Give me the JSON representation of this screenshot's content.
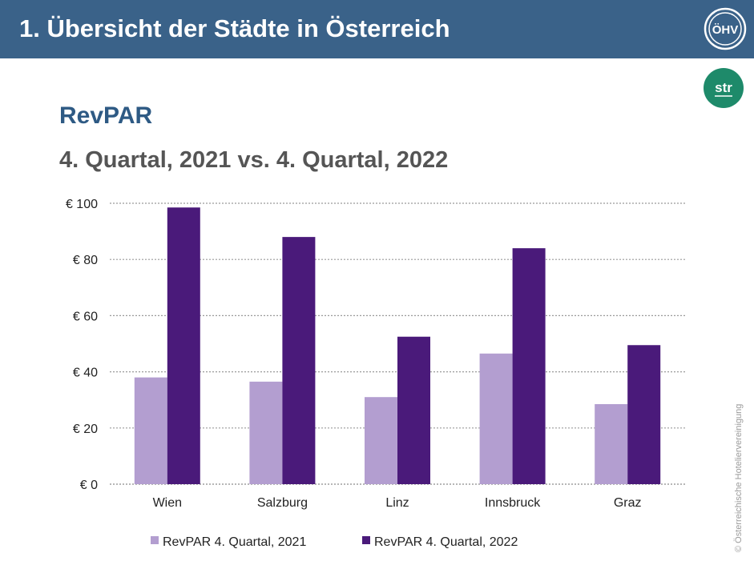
{
  "header": {
    "title": "1. Übersicht der Städte in Österreich",
    "logo_text": "ÖHV",
    "str_logo_text": "str"
  },
  "slide": {
    "subtitle": "RevPAR",
    "period": "4. Quartal, 2021 vs. 4. Quartal, 2022"
  },
  "copyright": "© Österreichische Hoteliervereinigung",
  "colors": {
    "header_bg": "#3a6289",
    "series_2021": "#b39ed0",
    "series_2022": "#4a1a7a",
    "str_logo": "#1e8a6a"
  },
  "chart_data": {
    "type": "bar",
    "categories": [
      "Wien",
      "Salzburg",
      "Linz",
      "Innsbruck",
      "Graz"
    ],
    "series": [
      {
        "name": "RevPAR 4. Quartal, 2021",
        "values": [
          38,
          36.5,
          31,
          46.5,
          28.5
        ]
      },
      {
        "name": "RevPAR 4. Quartal, 2022",
        "values": [
          98.5,
          88,
          52.5,
          84,
          49.5
        ]
      }
    ],
    "ylim": [
      0,
      100
    ],
    "yticks": [
      0,
      20,
      40,
      60,
      80,
      100
    ],
    "ytick_labels": [
      "€ 0",
      "€ 20",
      "€ 40",
      "€ 60",
      "€ 80",
      "€ 100"
    ],
    "grid": true,
    "legend_position": "bottom"
  }
}
